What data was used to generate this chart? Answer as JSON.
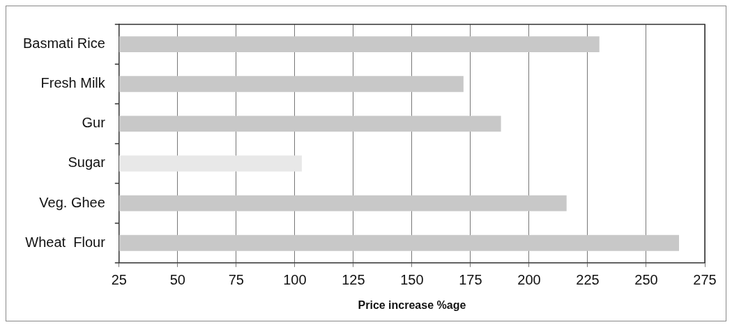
{
  "chart_data": {
    "type": "bar",
    "orientation": "horizontal",
    "xlabel": "Price increase %age",
    "categories": [
      "Basmati Rice",
      "Fresh Milk",
      "Gur",
      "Sugar",
      "Veg. Ghee",
      "Wheat  Flour"
    ],
    "values": [
      230,
      172,
      188,
      103,
      216,
      264
    ],
    "colors": [
      "#c8c8c8",
      "#c8c8c8",
      "#c8c8c8",
      "#e8e8e8",
      "#c8c8c8",
      "#c8c8c8"
    ],
    "xlim": [
      25,
      275
    ],
    "xticks": [
      25,
      50,
      75,
      100,
      125,
      150,
      175,
      200,
      225,
      250,
      275
    ],
    "grid": "x",
    "legend": false
  }
}
